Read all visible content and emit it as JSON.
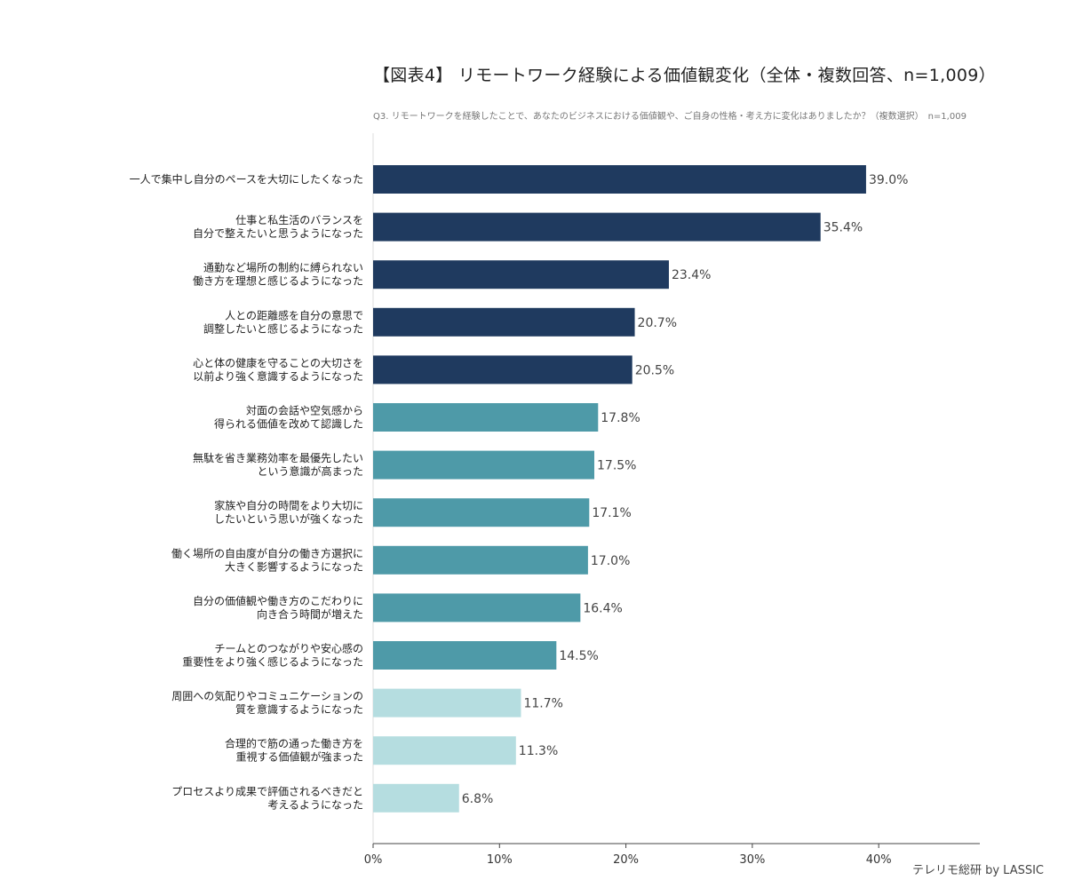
{
  "chart_data": {
    "type": "bar",
    "orientation": "horizontal",
    "title": "【図表4】 リモートワーク経験による価値観変化（全体・複数回答、n=1,009）",
    "subtitle": "Q3. リモートワークを経験したことで、あなたのビジネスにおける価値観や、ご自身の性格・考え方に変化はありましたか？（複数選択）　n=1,009",
    "categories": [
      [
        "一人で集中し自分のペースを大切にしたくなった"
      ],
      [
        "仕事と私生活のバランスを",
        "自分で整えたいと思うようになった"
      ],
      [
        "通勤など場所の制約に縛られない",
        "働き方を理想と感じるようになった"
      ],
      [
        "人との距離感を自分の意思で",
        "調整したいと感じるようになった"
      ],
      [
        "心と体の健康を守ることの大切さを",
        "以前より強く意識するようになった"
      ],
      [
        "対面の会話や空気感から",
        "得られる価値を改めて認識した"
      ],
      [
        "無駄を省き業務効率を最優先したい",
        "という意識が高まった"
      ],
      [
        "家族や自分の時間をより大切に",
        "したいという思いが強くなった"
      ],
      [
        "働く場所の自由度が自分の働き方選択に",
        "大きく影響するようになった"
      ],
      [
        "自分の価値観や働き方のこだわりに",
        "向き合う時間が増えた"
      ],
      [
        "チームとのつながりや安心感の",
        "重要性をより強く感じるようになった"
      ],
      [
        "周囲への気配りやコミュニケーションの",
        "質を意識するようになった"
      ],
      [
        "合理的で筋の通った働き方を",
        "重視する価値観が強まった"
      ],
      [
        "プロセスより成果で評価されるべきだと",
        "考えるようになった"
      ]
    ],
    "values": [
      39.0,
      35.4,
      23.4,
      20.7,
      20.5,
      17.8,
      17.5,
      17.1,
      17.0,
      16.4,
      14.5,
      11.7,
      11.3,
      6.8
    ],
    "value_labels": [
      "39.0%",
      "35.4%",
      "23.4%",
      "20.7%",
      "20.5%",
      "17.8%",
      "17.5%",
      "17.1%",
      "17.0%",
      "16.4%",
      "14.5%",
      "11.7%",
      "11.3%",
      "6.8%"
    ],
    "color_groups": [
      "dark",
      "dark",
      "dark",
      "dark",
      "dark",
      "mid",
      "mid",
      "mid",
      "mid",
      "mid",
      "mid",
      "light",
      "light",
      "light"
    ],
    "colors": {
      "dark": "#1f3a5f",
      "mid": "#4e9aa8",
      "light": "#b5dde0"
    },
    "xlim": [
      0,
      48
    ],
    "xticks": [
      0,
      10,
      20,
      30,
      40
    ],
    "xtick_labels": [
      "0%",
      "10%",
      "20%",
      "30%",
      "40%"
    ],
    "grid": false,
    "legend": "none"
  },
  "credit": "テレリモ総研 by LASSIC"
}
